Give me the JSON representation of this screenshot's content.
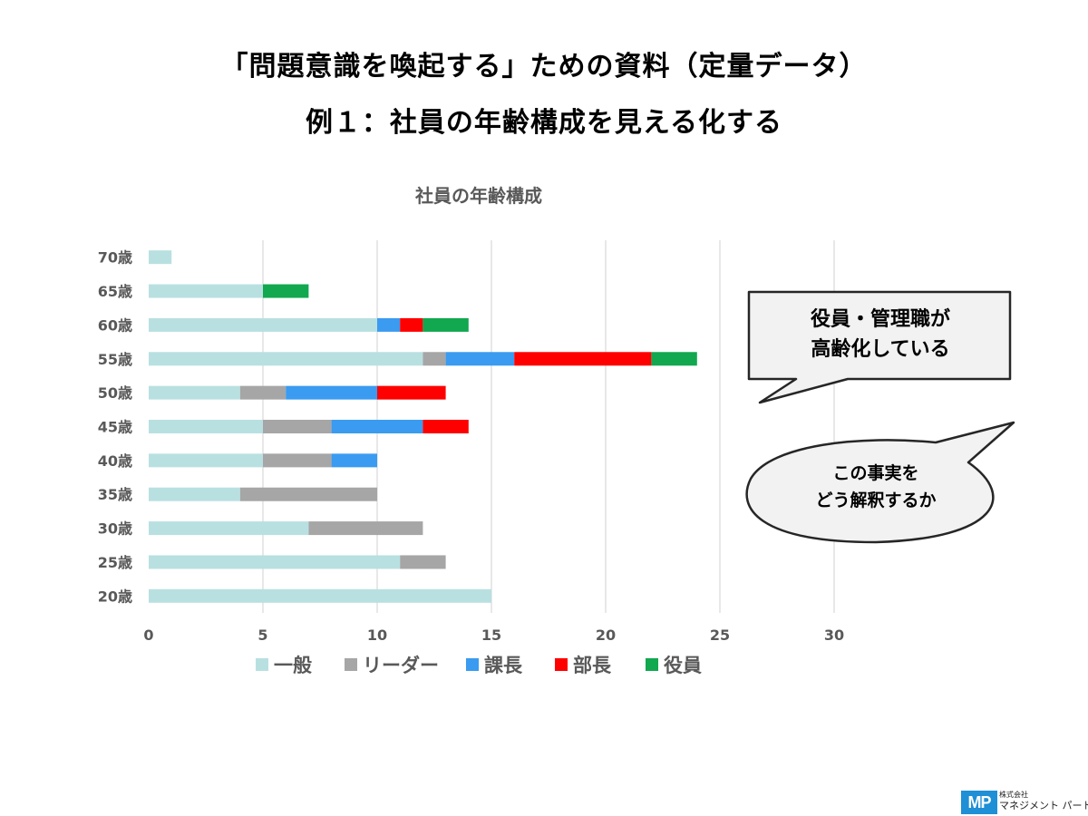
{
  "titles": {
    "line1": "「問題意識を喚起する」ための資料（定量データ）",
    "line2": "例１：社員の年齢構成を見える化する"
  },
  "chart_data": {
    "type": "bar",
    "orientation": "horizontal",
    "stacked": true,
    "title": "社員の年齢構成",
    "xlabel": "",
    "ylabel": "",
    "xlim": [
      0,
      30
    ],
    "xticks": [
      0,
      5,
      10,
      15,
      20,
      25,
      30
    ],
    "grid": true,
    "legend_position": "bottom",
    "categories": [
      "20歳",
      "25歳",
      "30歳",
      "35歳",
      "40歳",
      "45歳",
      "50歳",
      "55歳",
      "60歳",
      "65歳",
      "70歳"
    ],
    "series": [
      {
        "name": "一般",
        "color": "#b9e0e1",
        "values": [
          15,
          11,
          7,
          4,
          5,
          5,
          4,
          12,
          10,
          5,
          1
        ]
      },
      {
        "name": "リーダー",
        "color": "#a6a6a6",
        "values": [
          0,
          2,
          5,
          6,
          3,
          3,
          2,
          1,
          0,
          0,
          0
        ]
      },
      {
        "name": "課長",
        "color": "#3a9bf0",
        "values": [
          0,
          0,
          0,
          0,
          2,
          4,
          4,
          3,
          1,
          0,
          0
        ]
      },
      {
        "name": "部長",
        "color": "#ff0000",
        "values": [
          0,
          0,
          0,
          0,
          0,
          2,
          3,
          6,
          1,
          0,
          0
        ]
      },
      {
        "name": "役員",
        "color": "#11a84f",
        "values": [
          0,
          0,
          0,
          0,
          0,
          0,
          0,
          2,
          2,
          2,
          0
        ]
      }
    ]
  },
  "callouts": {
    "box": {
      "line1": "役員・管理職が",
      "line2": "高齢化している"
    },
    "bubble": {
      "line1": "この事実を",
      "line2": "どう解釈するか"
    }
  },
  "logo": {
    "mark": "MP",
    "small": "株式会社",
    "name": "マネジメント パートナー"
  }
}
